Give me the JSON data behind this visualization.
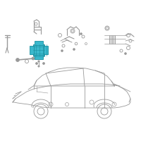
{
  "background_color": "#ffffff",
  "figure_width": 2.0,
  "figure_height": 2.0,
  "dpi": 100,
  "line_color": "#999999",
  "highlight_color": "#3ab8cc",
  "highlight_edge": "#1a90a0",
  "lw": 0.6
}
